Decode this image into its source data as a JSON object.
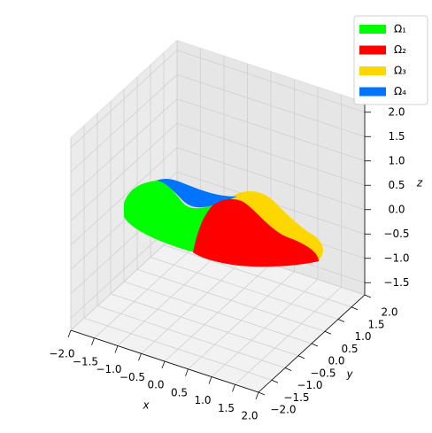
{
  "chart_data": {
    "type": "surface3d",
    "x_label": "x",
    "y_label": "y",
    "z_label": "z",
    "xlim": [
      -2,
      2
    ],
    "ylim": [
      -2,
      2
    ],
    "zlim": [
      -1.75,
      2.2
    ],
    "xticks": [
      {
        "value": -2,
        "label": "−2.0"
      },
      {
        "value": -1.5,
        "label": "−1.5"
      },
      {
        "value": -1,
        "label": "−1.0"
      },
      {
        "value": -0.5,
        "label": "−0.5"
      },
      {
        "value": 0,
        "label": "0.0"
      },
      {
        "value": 0.5,
        "label": "0.5"
      },
      {
        "value": 1,
        "label": "1.0"
      },
      {
        "value": 1.5,
        "label": "1.5"
      },
      {
        "value": 2,
        "label": "2.0"
      }
    ],
    "yticks": [
      {
        "value": -2,
        "label": "−2.0"
      },
      {
        "value": -1.5,
        "label": "−1.5"
      },
      {
        "value": -1,
        "label": "−1.0"
      },
      {
        "value": -0.5,
        "label": "−0.5"
      },
      {
        "value": 0,
        "label": "0.0"
      },
      {
        "value": 0.5,
        "label": "0.5"
      },
      {
        "value": 1,
        "label": "1.0"
      },
      {
        "value": 1.5,
        "label": "1.5"
      },
      {
        "value": 2,
        "label": "2.0"
      }
    ],
    "zticks": [
      {
        "value": -1.5,
        "label": "−1.5"
      },
      {
        "value": -1,
        "label": "−1.0"
      },
      {
        "value": -0.5,
        "label": "−0.5"
      },
      {
        "value": 0,
        "label": "0.0"
      },
      {
        "value": 0.5,
        "label": "0.5"
      },
      {
        "value": 1,
        "label": "1.0"
      },
      {
        "value": 1.5,
        "label": "1.5"
      },
      {
        "value": 2,
        "label": "2.0"
      }
    ],
    "grid": true,
    "legend": "upper right",
    "series": [
      {
        "name": "Ω₁",
        "color": "#00ff00"
      },
      {
        "name": "Ω₂",
        "color": "#ff0000"
      },
      {
        "name": "Ω₃",
        "color": "#ffd700"
      },
      {
        "name": "Ω₄",
        "color": "#0073ff"
      }
    ]
  }
}
